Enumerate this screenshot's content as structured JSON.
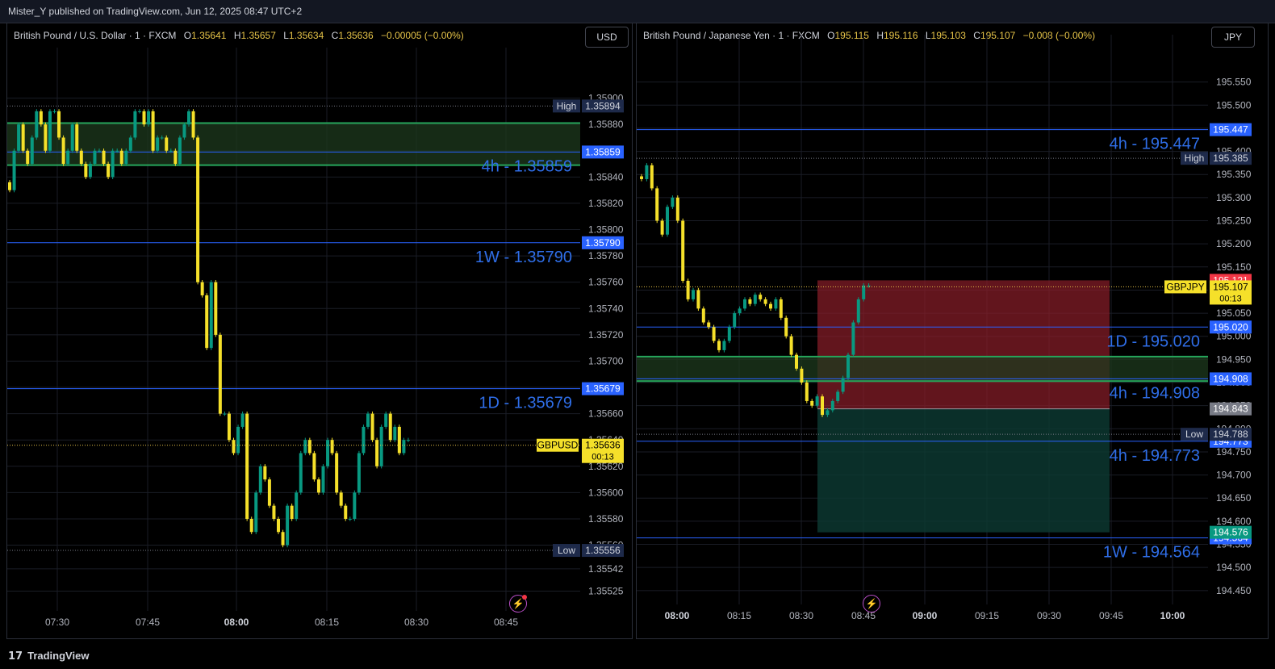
{
  "header": {
    "publisher": "Mister_Y published on TradingView.com, Jun 12, 2025 08:47 UTC+2"
  },
  "footer": {
    "brand": "TradingView",
    "logo_glyph": "17"
  },
  "colors": {
    "up": "#089981",
    "down": "#f5e02a",
    "level_line": "#2962ff",
    "level_text": "#2f6ee8",
    "zone_green": "#26a65b",
    "stop_zone": "#8b1e2a",
    "target_zone": "#0d3b33",
    "grid": "#1a1d26"
  },
  "chart_data": [
    {
      "type": "candlestick",
      "symbol_label": "GBPUSD",
      "legend": {
        "name": "British Pound / U.S. Dollar · 1 · FXCM",
        "o": "1.35641",
        "h": "1.35657",
        "l": "1.35634",
        "c": "1.35636",
        "chg": "−0.00005 (−0.00%)"
      },
      "currency": "USD",
      "ylim": [
        1.3551,
        1.3592
      ],
      "y_ticks": [
        "1.35900",
        "1.35880",
        "1.35860",
        "1.35840",
        "1.35820",
        "1.35800",
        "1.35780",
        "1.35760",
        "1.35740",
        "1.35720",
        "1.35700",
        "1.35680",
        "1.35660",
        "1.35640",
        "1.35620",
        "1.35600",
        "1.35580",
        "1.35560",
        "1.35542",
        "1.35525"
      ],
      "x_ticks": [
        {
          "label": "07:30",
          "bold": false
        },
        {
          "label": "07:45",
          "bold": false
        },
        {
          "label": "08:00",
          "bold": true
        },
        {
          "label": "08:15",
          "bold": false
        },
        {
          "label": "08:30",
          "bold": false
        },
        {
          "label": "08:45",
          "bold": false
        }
      ],
      "session_high": {
        "label": "High",
        "value": "1.35894"
      },
      "session_low": {
        "label": "Low",
        "value": "1.35556"
      },
      "last_price": {
        "value": "1.35636",
        "countdown": "00:13"
      },
      "levels": [
        {
          "price": 1.35859,
          "label": "4h - 1.35859",
          "badge": "1.35859"
        },
        {
          "price": 1.3579,
          "label": "1W - 1.35790",
          "badge": "1.35790"
        },
        {
          "price": 1.35679,
          "label": "1D - 1.35679",
          "badge": "1.35679"
        }
      ],
      "zone": {
        "top": 1.35881,
        "bottom": 1.35849
      },
      "closes": [
        1.3583,
        1.3586,
        1.3588,
        1.3586,
        1.3585,
        1.3587,
        1.3589,
        1.3588,
        1.3586,
        1.3589,
        1.3589,
        1.3587,
        1.3585,
        1.3586,
        1.3588,
        1.3586,
        1.3585,
        1.3584,
        1.3585,
        1.3586,
        1.3586,
        1.3585,
        1.3584,
        1.3586,
        1.3586,
        1.3585,
        1.3586,
        1.3587,
        1.3589,
        1.3589,
        1.3588,
        1.3589,
        1.3586,
        1.3587,
        1.3587,
        1.3586,
        1.3586,
        1.3585,
        1.3587,
        1.3588,
        1.3589,
        1.3587,
        1.3576,
        1.3575,
        1.3571,
        1.3576,
        1.3572,
        1.3566,
        1.3566,
        1.3564,
        1.3563,
        1.3565,
        1.3566,
        1.3558,
        1.3557,
        1.356,
        1.3562,
        1.3561,
        1.3559,
        1.3558,
        1.3557,
        1.3556,
        1.3559,
        1.3558,
        1.356,
        1.3563,
        1.3564,
        1.3563,
        1.3561,
        1.356,
        1.3562,
        1.3564,
        1.3563,
        1.356,
        1.3559,
        1.3558,
        1.3558,
        1.356,
        1.3563,
        1.3565,
        1.3566,
        1.3564,
        1.3562,
        1.3565,
        1.3566,
        1.3564,
        1.3565,
        1.3563,
        1.3564,
        1.3564
      ]
    },
    {
      "type": "candlestick",
      "symbol_label": "GBPJPY",
      "legend": {
        "name": "British Pound / Japanese Yen · 1 · FXCM",
        "o": "195.115",
        "h": "195.116",
        "l": "195.103",
        "c": "195.107",
        "chg": "−0.008 (−0.00%)"
      },
      "currency": "JPY",
      "ylim": [
        194.42,
        195.6
      ],
      "y_ticks": [
        "195.550",
        "195.500",
        "195.450",
        "195.400",
        "195.350",
        "195.300",
        "195.250",
        "195.200",
        "195.150",
        "195.100",
        "195.050",
        "195.000",
        "194.950",
        "194.900",
        "194.850",
        "194.800",
        "194.750",
        "194.700",
        "194.650",
        "194.600",
        "194.550",
        "194.500",
        "194.450"
      ],
      "x_ticks": [
        {
          "label": "08:00",
          "bold": true
        },
        {
          "label": "08:15",
          "bold": false
        },
        {
          "label": "08:30",
          "bold": false
        },
        {
          "label": "08:45",
          "bold": false
        },
        {
          "label": "09:00",
          "bold": true
        },
        {
          "label": "09:15",
          "bold": false
        },
        {
          "label": "09:30",
          "bold": false
        },
        {
          "label": "09:45",
          "bold": false
        },
        {
          "label": "10:00",
          "bold": true
        }
      ],
      "session_high": {
        "label": "High",
        "value": "195.385"
      },
      "session_low": {
        "label": "Low",
        "value": "194.788"
      },
      "last_price": {
        "value": "195.107",
        "countdown": "00:13"
      },
      "stop_price": "195.121",
      "entry_price": "194.843",
      "target_price": "194.576",
      "position": {
        "stop": 195.121,
        "entry": 194.843,
        "target": 194.576
      },
      "levels": [
        {
          "price": 195.447,
          "label": "4h - 195.447",
          "badge": "195.447"
        },
        {
          "price": 195.02,
          "label": "1D - 195.020",
          "badge": "195.020"
        },
        {
          "price": 194.908,
          "label": "4h - 194.908",
          "badge": "194.908"
        },
        {
          "price": 194.773,
          "label": "4h - 194.773",
          "badge": "194.773"
        },
        {
          "price": 194.564,
          "label": "1W - 194.564",
          "badge": "194.564"
        }
      ],
      "zone": {
        "top": 194.956,
        "bottom": 194.903
      },
      "closes": [
        195.34,
        195.37,
        195.32,
        195.25,
        195.22,
        195.28,
        195.3,
        195.25,
        195.12,
        195.08,
        195.1,
        195.06,
        195.03,
        195.02,
        194.99,
        194.97,
        194.99,
        195.02,
        195.05,
        195.06,
        195.08,
        195.07,
        195.09,
        195.08,
        195.07,
        195.06,
        195.08,
        195.04,
        195.0,
        194.96,
        194.93,
        194.9,
        194.86,
        194.85,
        194.87,
        194.83,
        194.84,
        194.86,
        194.88,
        194.91,
        194.96,
        195.03,
        195.08,
        195.11,
        195.11
      ]
    }
  ]
}
